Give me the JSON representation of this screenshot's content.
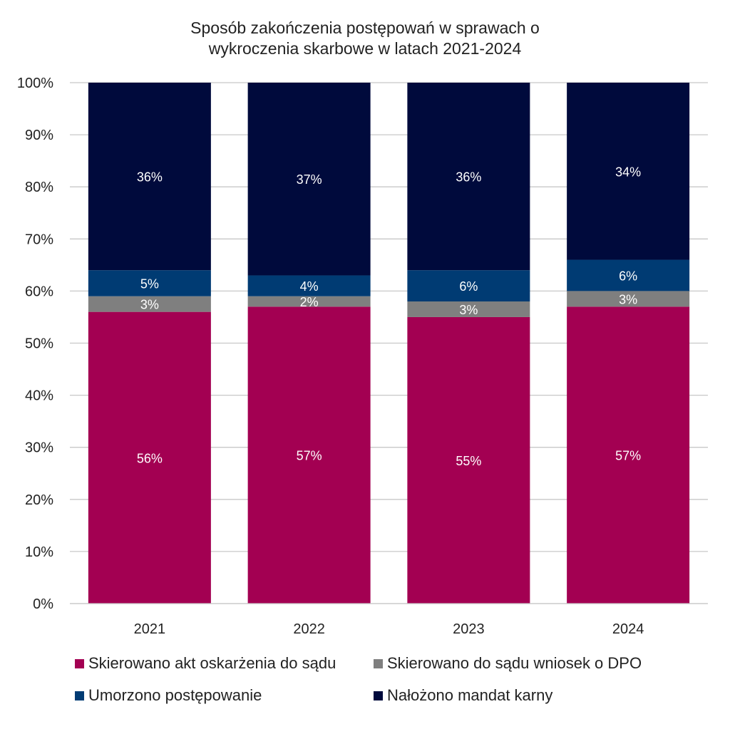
{
  "chart_data": {
    "type": "bar",
    "stacked": true,
    "title_lines": [
      "Sposób zakończenia postępowań w sprawach o",
      "wykroczenia skarbowe w latach 2021-2024"
    ],
    "categories": [
      "2021",
      "2022",
      "2023",
      "2024"
    ],
    "ylim": [
      0,
      100
    ],
    "y_ticks": [
      "0%",
      "10%",
      "20%",
      "30%",
      "40%",
      "50%",
      "60%",
      "70%",
      "80%",
      "90%",
      "100%"
    ],
    "y_tick_values": [
      0,
      10,
      20,
      30,
      40,
      50,
      60,
      70,
      80,
      90,
      100
    ],
    "grid": true,
    "legend_position": "bottom",
    "series": [
      {
        "name": "Skierowano akt oskarżenia do sądu",
        "color": "#A30052",
        "values": [
          56,
          57,
          55,
          57
        ],
        "labels": [
          "56%",
          "57%",
          "55%",
          "57%"
        ],
        "label_color": "#ffffff"
      },
      {
        "name": "Skierowano do sądu wniosek o DPO",
        "color": "#7F7F7F",
        "values": [
          3,
          2,
          3,
          3
        ],
        "labels": [
          "3%",
          "2%",
          "3%",
          "3%"
        ],
        "label_color": "#ffffff"
      },
      {
        "name": "Umorzono postępowanie",
        "color": "#003B73",
        "values": [
          5,
          4,
          6,
          6
        ],
        "labels": [
          "5%",
          "4%",
          "6%",
          "6%"
        ],
        "label_color": "#ffffff"
      },
      {
        "name": "Nałożono mandat karny",
        "color": "#000A3C",
        "values": [
          36,
          37,
          36,
          34
        ],
        "labels": [
          "36%",
          "37%",
          "36%",
          "34%"
        ],
        "label_color": "#ffffff"
      }
    ]
  }
}
